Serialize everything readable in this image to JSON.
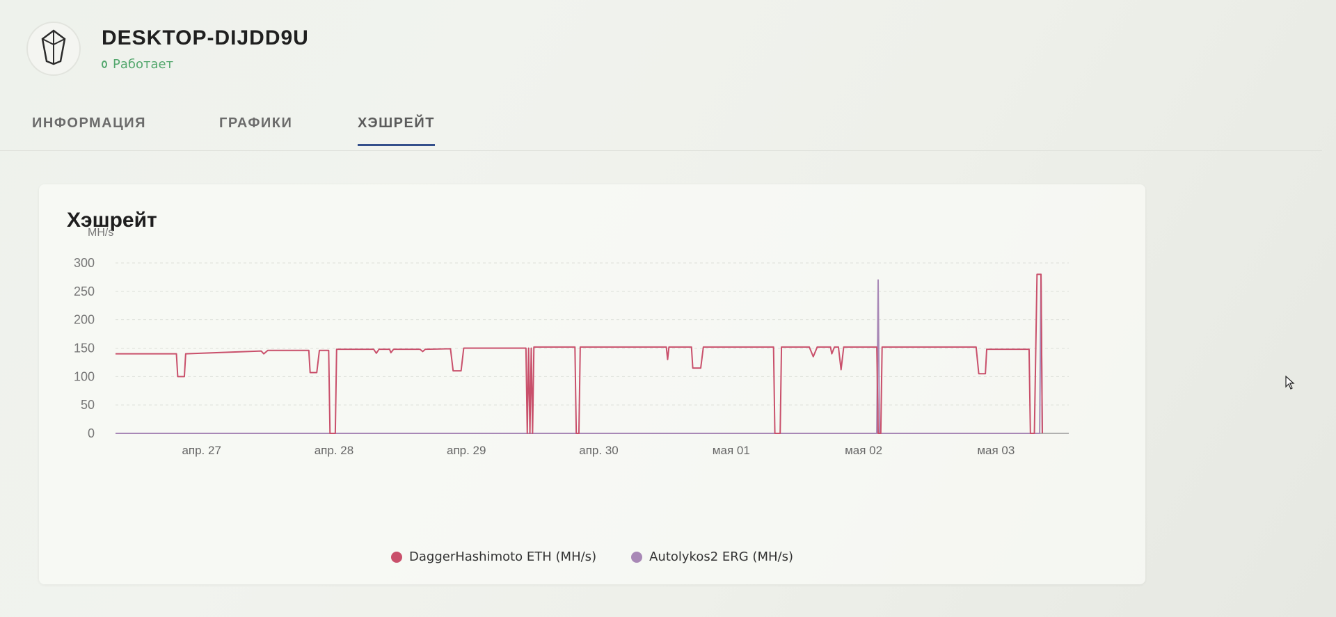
{
  "header": {
    "title": "DESKTOP-DIJDD9U",
    "status": "Работает",
    "status_color": "#53a76d",
    "logo_icon": "crystal-icon"
  },
  "tabs": [
    {
      "label": "ИНФОРМАЦИЯ",
      "active": false
    },
    {
      "label": "ГРАФИКИ",
      "active": false
    },
    {
      "label": "ХЭШРЕЙТ",
      "active": true
    }
  ],
  "card": {
    "title": "Хэшрейт"
  },
  "chart_data": {
    "type": "line",
    "ylabel": "MH/s",
    "ylim": [
      0,
      300
    ],
    "yticks": [
      0,
      50,
      100,
      150,
      200,
      250,
      300
    ],
    "xlim": [
      0,
      7.2
    ],
    "xticks": [
      {
        "label": "апр. 27",
        "x": 0.65
      },
      {
        "label": "апр. 28",
        "x": 1.65
      },
      {
        "label": "апр. 29",
        "x": 2.65
      },
      {
        "label": "апр. 30",
        "x": 3.65
      },
      {
        "label": "мая 01",
        "x": 4.65
      },
      {
        "label": "мая 02",
        "x": 5.65
      },
      {
        "label": "мая 03",
        "x": 6.65
      }
    ],
    "grid": true,
    "legend_position": "bottom",
    "series": [
      {
        "name": "DaggerHashimoto ETH (MH/s)",
        "color": "#c9506b",
        "points": [
          [
            0.0,
            140
          ],
          [
            0.46,
            140
          ],
          [
            0.47,
            100
          ],
          [
            0.52,
            100
          ],
          [
            0.53,
            140
          ],
          [
            1.1,
            145
          ],
          [
            1.12,
            140
          ],
          [
            1.15,
            146
          ],
          [
            1.3,
            146
          ],
          [
            1.46,
            146
          ],
          [
            1.47,
            107
          ],
          [
            1.52,
            107
          ],
          [
            1.54,
            146
          ],
          [
            1.61,
            146
          ],
          [
            1.62,
            0
          ],
          [
            1.66,
            0
          ],
          [
            1.67,
            148
          ],
          [
            1.95,
            148
          ],
          [
            1.97,
            141
          ],
          [
            1.99,
            148
          ],
          [
            2.07,
            148
          ],
          [
            2.08,
            142
          ],
          [
            2.1,
            148
          ],
          [
            2.3,
            148
          ],
          [
            2.32,
            144
          ],
          [
            2.34,
            148
          ],
          [
            2.53,
            149
          ],
          [
            2.55,
            110
          ],
          [
            2.61,
            110
          ],
          [
            2.63,
            150
          ],
          [
            3.1,
            150
          ],
          [
            3.11,
            0
          ],
          [
            3.12,
            150
          ],
          [
            3.13,
            0
          ],
          [
            3.14,
            150
          ],
          [
            3.15,
            0
          ],
          [
            3.16,
            152
          ],
          [
            3.47,
            152
          ],
          [
            3.48,
            0
          ],
          [
            3.5,
            0
          ],
          [
            3.51,
            152
          ],
          [
            4.16,
            152
          ],
          [
            4.17,
            130
          ],
          [
            4.18,
            152
          ],
          [
            4.35,
            152
          ],
          [
            4.36,
            115
          ],
          [
            4.42,
            115
          ],
          [
            4.44,
            152
          ],
          [
            4.97,
            152
          ],
          [
            4.98,
            0
          ],
          [
            5.02,
            0
          ],
          [
            5.03,
            152
          ],
          [
            5.24,
            152
          ],
          [
            5.27,
            135
          ],
          [
            5.3,
            152
          ],
          [
            5.4,
            152
          ],
          [
            5.41,
            140
          ],
          [
            5.43,
            152
          ],
          [
            5.46,
            152
          ],
          [
            5.48,
            112
          ],
          [
            5.5,
            152
          ],
          [
            5.75,
            152
          ],
          [
            5.76,
            0
          ],
          [
            5.78,
            0
          ],
          [
            5.79,
            152
          ],
          [
            6.3,
            152
          ],
          [
            6.5,
            152
          ],
          [
            6.52,
            105
          ],
          [
            6.57,
            105
          ],
          [
            6.58,
            148
          ],
          [
            6.9,
            148
          ],
          [
            6.91,
            0
          ],
          [
            6.94,
            0
          ],
          [
            6.96,
            280
          ],
          [
            6.99,
            280
          ],
          [
            7.0,
            0
          ]
        ]
      },
      {
        "name": "Autolykos2 ERG (MH/s)",
        "color": "#a888b6",
        "points": [
          [
            0.0,
            0
          ],
          [
            5.75,
            0
          ],
          [
            5.76,
            270
          ],
          [
            5.77,
            0
          ],
          [
            6.98,
            0
          ],
          [
            6.99,
            280
          ],
          [
            7.0,
            0
          ]
        ]
      }
    ]
  }
}
